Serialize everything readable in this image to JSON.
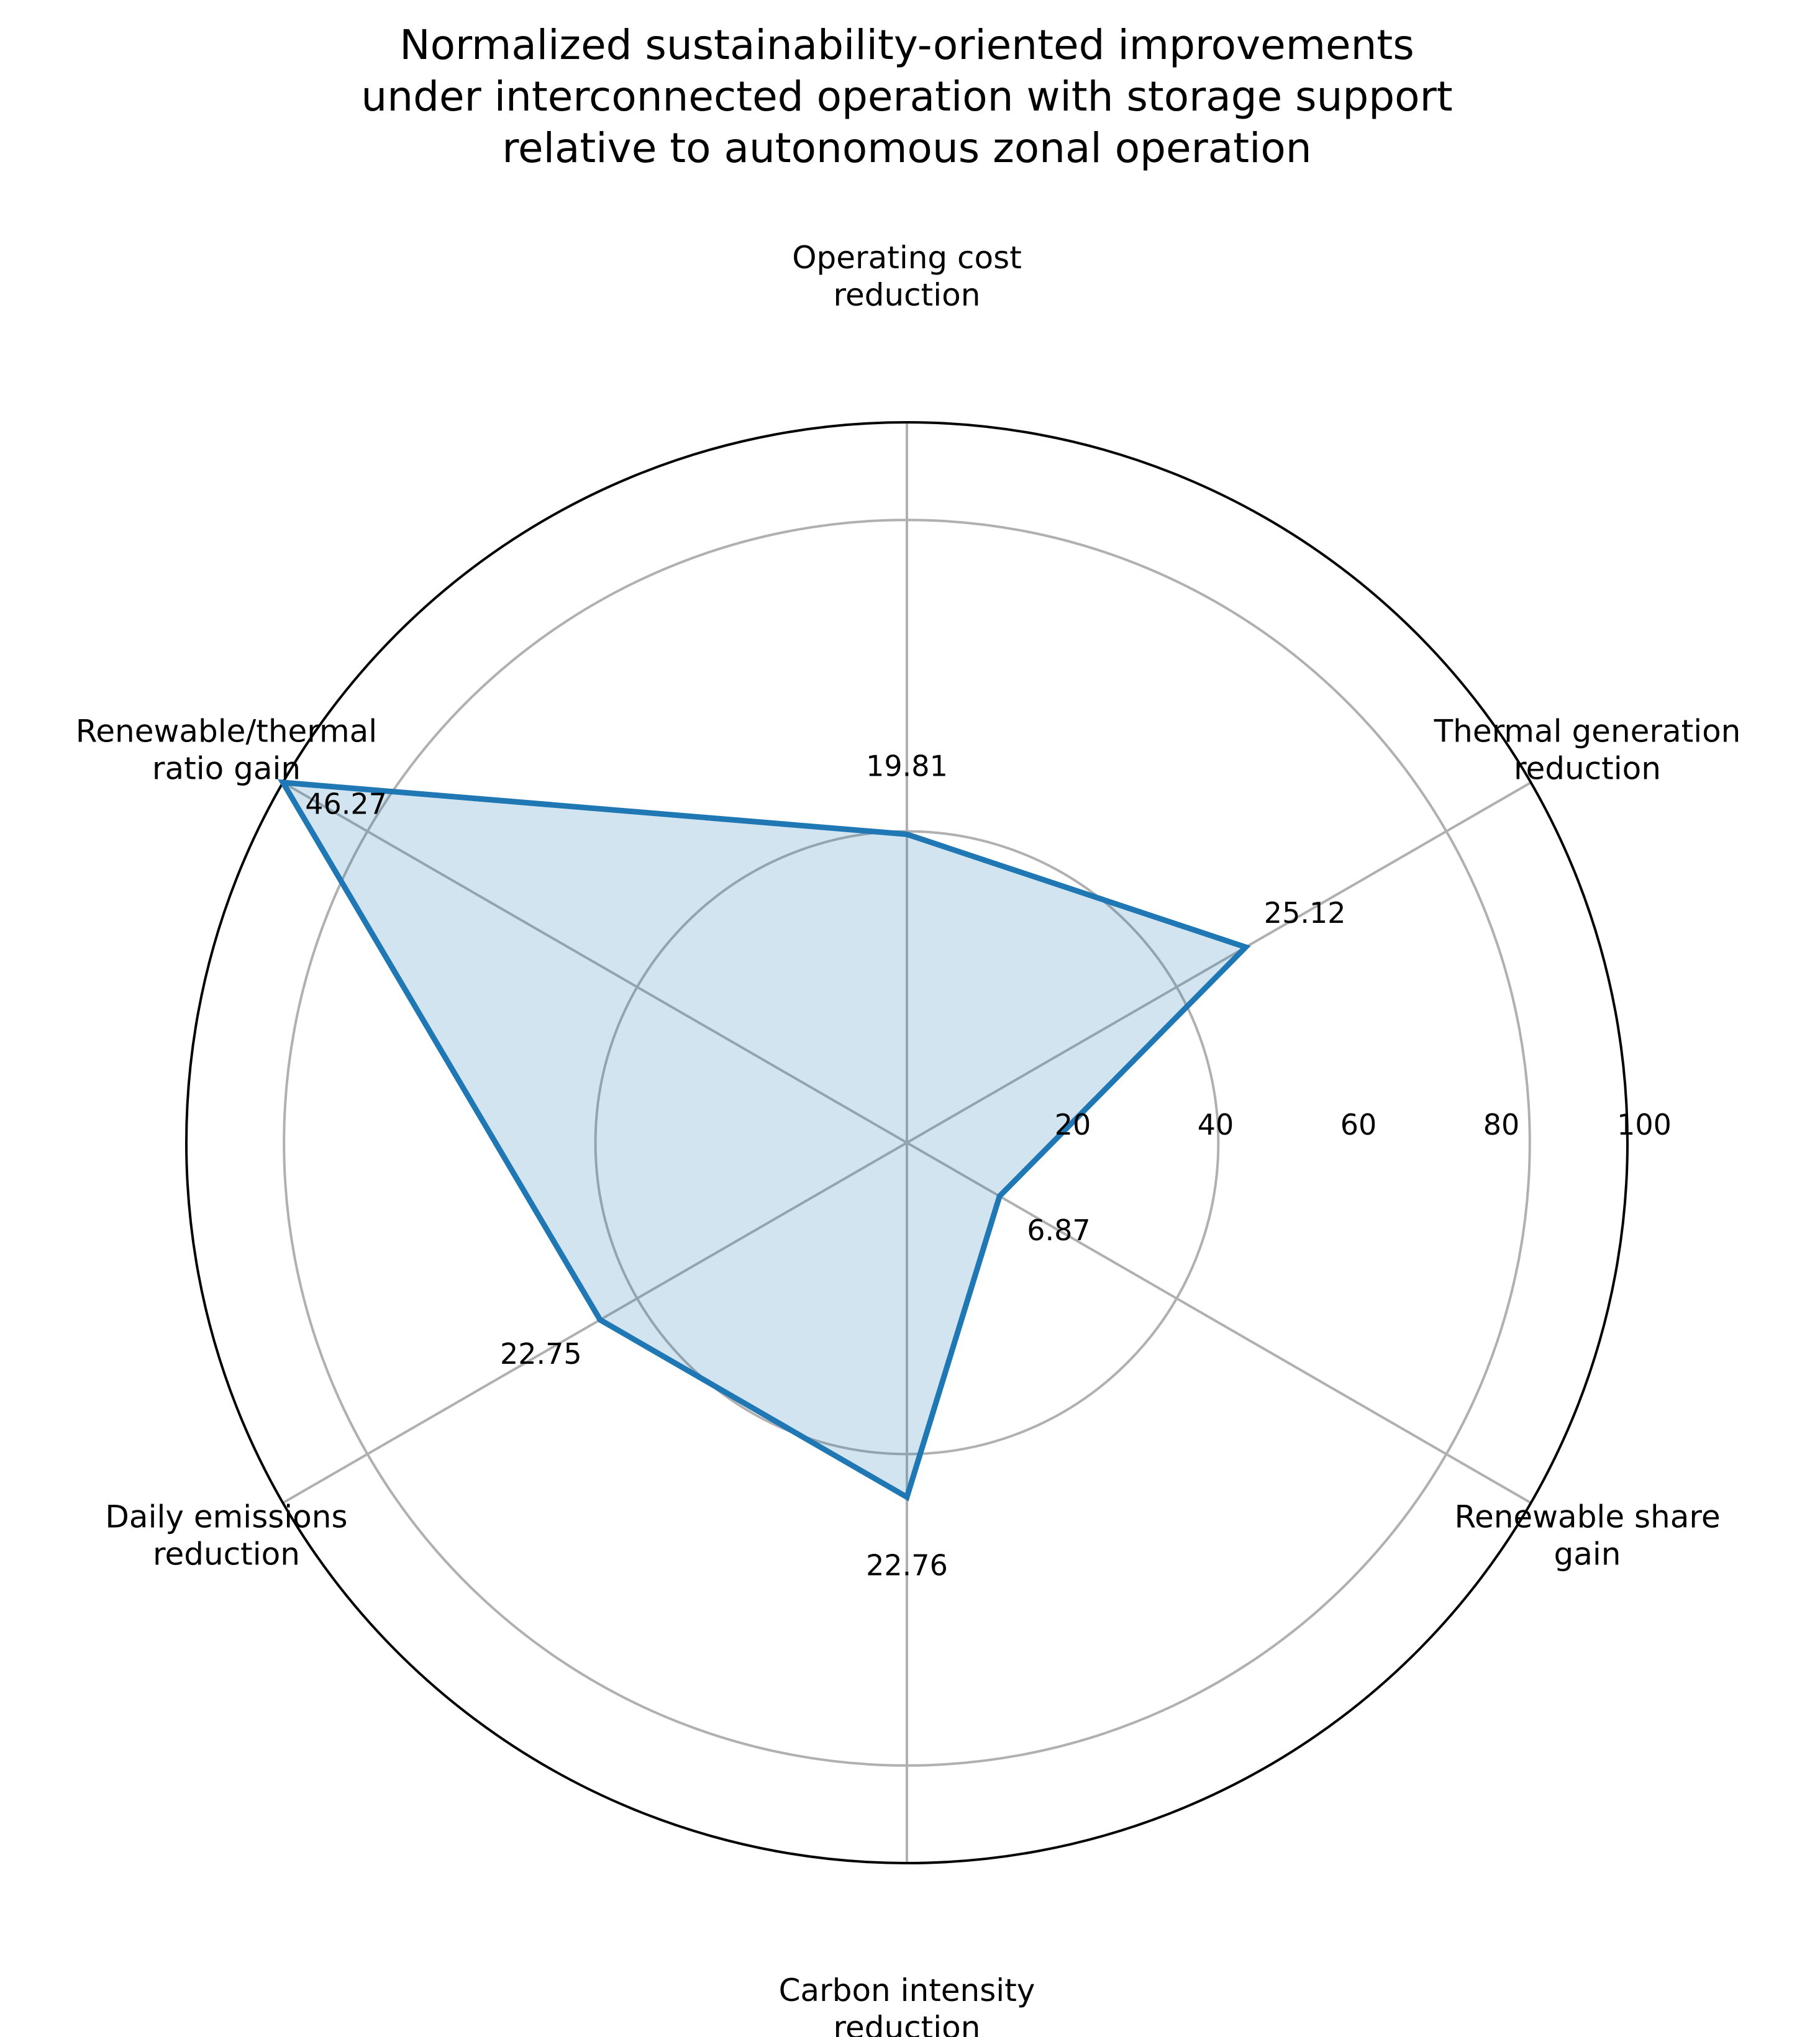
{
  "chart_data": {
    "type": "radar",
    "title": [
      "Normalized sustainability-oriented improvements",
      "under interconnected operation with storage support",
      "relative to autonomous zonal operation"
    ],
    "categories": [
      [
        "Operating cost",
        "reduction"
      ],
      [
        "Thermal generation",
        "reduction"
      ],
      [
        "Renewable share",
        "gain"
      ],
      [
        "Carbon intensity",
        "reduction"
      ],
      [
        "Daily emissions",
        "reduction"
      ],
      [
        "Renewable/thermal",
        "ratio gain"
      ]
    ],
    "series": [
      {
        "values": [
          19.81,
          25.12,
          6.87,
          22.76,
          22.75,
          46.27
        ],
        "color": "#1f77b4",
        "fill_color": "#1f77b4",
        "fill_opacity": 0.2
      }
    ],
    "value_labels": [
      "19.81",
      "25.12",
      "6.87",
      "22.76",
      "22.75",
      "46.27"
    ],
    "rlim": [
      0,
      46.27
    ],
    "rticks": [
      20,
      40,
      60,
      80,
      100
    ],
    "rtick_labels": [
      "20",
      "40",
      "60",
      "80",
      "100"
    ],
    "grid": true,
    "grid_color": "#b0b0b0",
    "outer_ring_color": "#000000"
  }
}
